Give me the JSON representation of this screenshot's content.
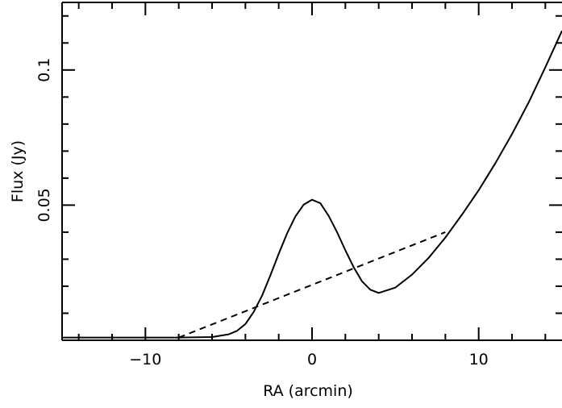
{
  "chart_data": {
    "type": "line",
    "xlabel": "RA (arcmin)",
    "ylabel": "Flux (Jy)",
    "xlim": [
      -15,
      15
    ],
    "ylim": [
      0,
      0.125
    ],
    "x_ticks": [
      -10,
      0,
      10
    ],
    "x_tick_labels": [
      "−10",
      "0",
      "10"
    ],
    "y_ticks": [
      0.05,
      0.1
    ],
    "y_tick_labels": [
      "0.05",
      "0.1"
    ],
    "y_tick_labels_rotated": true,
    "grid": false,
    "legend": "none",
    "series": [
      {
        "style": "solid",
        "color": "#000000",
        "x": [
          -15,
          -8,
          -6,
          -5,
          -4.5,
          -4,
          -3.5,
          -3,
          -2.5,
          -2,
          -1.5,
          -1,
          -0.5,
          0,
          0.5,
          1,
          1.5,
          2,
          2.5,
          3,
          3.5,
          4,
          5,
          6,
          7,
          8,
          9,
          10,
          11,
          12,
          13,
          14,
          15
        ],
        "y": [
          0.001,
          0.001,
          0.0012,
          0.0022,
          0.0035,
          0.006,
          0.0105,
          0.0165,
          0.024,
          0.032,
          0.0395,
          0.0458,
          0.0502,
          0.052,
          0.0507,
          0.046,
          0.04,
          0.0333,
          0.027,
          0.0218,
          0.0187,
          0.0175,
          0.0195,
          0.0243,
          0.0305,
          0.038,
          0.0465,
          0.0555,
          0.0655,
          0.0763,
          0.088,
          0.101,
          0.1145
        ]
      },
      {
        "style": "dashed",
        "color": "#000000",
        "x": [
          -8,
          8
        ],
        "y": [
          0.001,
          0.04
        ]
      }
    ]
  }
}
